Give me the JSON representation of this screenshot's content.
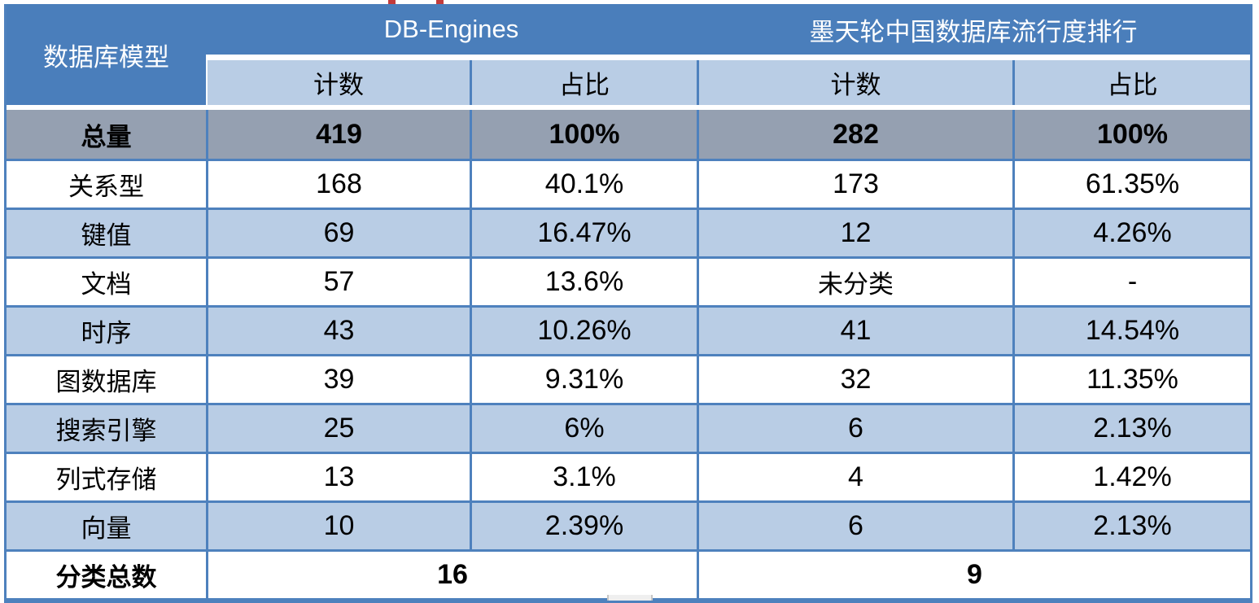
{
  "chart_data": {
    "type": "table",
    "title": "",
    "corner_header": "数据库模型",
    "column_groups": [
      {
        "label": "DB-Engines",
        "columns": [
          "计数",
          "占比"
        ]
      },
      {
        "label": "墨天轮中国数据库流行度排行",
        "columns": [
          "计数",
          "占比"
        ]
      }
    ],
    "rows": [
      {
        "label": "总量",
        "values": [
          "419",
          "100%",
          "282",
          "100%"
        ],
        "emphasis": true
      },
      {
        "label": "关系型",
        "values": [
          "168",
          "40.1%",
          "173",
          "61.35%"
        ]
      },
      {
        "label": "键值",
        "values": [
          "69",
          "16.47%",
          "12",
          "4.26%"
        ]
      },
      {
        "label": "文档",
        "values": [
          "57",
          "13.6%",
          "未分类",
          "-"
        ]
      },
      {
        "label": "时序",
        "values": [
          "43",
          "10.26%",
          "41",
          "14.54%"
        ]
      },
      {
        "label": "图数据库",
        "values": [
          "39",
          "9.31%",
          "32",
          "11.35%"
        ]
      },
      {
        "label": "搜索引擎",
        "values": [
          "25",
          "6%",
          "6",
          "2.13%"
        ]
      },
      {
        "label": "列式存储",
        "values": [
          "13",
          "3.1%",
          "4",
          "1.42%"
        ]
      },
      {
        "label": "向量",
        "values": [
          "10",
          "2.39%",
          "6",
          "2.13%"
        ]
      }
    ],
    "footer": {
      "label": "分类总数",
      "values": [
        "16",
        "9"
      ]
    },
    "layout": {
      "grid": "on",
      "row_striping": "white / light-blue alternating"
    }
  },
  "colors": {
    "header_blue": "#4A7EBB",
    "row_light_blue": "#B9CDE5",
    "row_gray": "#95A0B1",
    "border_blue": "#4E81BD",
    "row_white": "#FFFFFF",
    "header_text": "#FFFFFF",
    "body_text": "#000000"
  }
}
